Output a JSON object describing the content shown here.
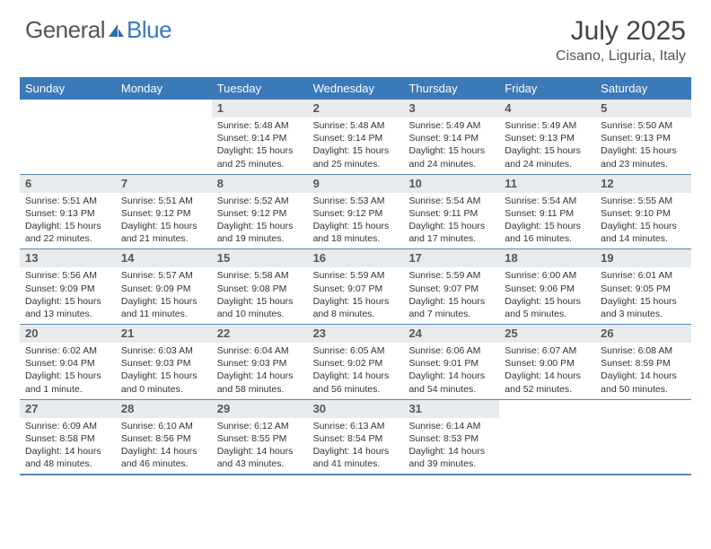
{
  "logo": {
    "general": "General",
    "blue": "Blue"
  },
  "title": {
    "month": "July 2025",
    "location": "Cisano, Liguria, Italy"
  },
  "columns": [
    "Sunday",
    "Monday",
    "Tuesday",
    "Wednesday",
    "Thursday",
    "Friday",
    "Saturday"
  ],
  "colors": {
    "header_bg": "#3a7ab8",
    "header_text": "#ffffff",
    "daynum_bg": "#e8ebed",
    "row_border": "#5a8ab0",
    "logo_gray": "#555555",
    "logo_blue": "#3a7ab8",
    "body_text": "#333333"
  },
  "weeks": [
    [
      {
        "day": "",
        "sunrise": "",
        "sunset": "",
        "daylight": ""
      },
      {
        "day": "",
        "sunrise": "",
        "sunset": "",
        "daylight": ""
      },
      {
        "day": "1",
        "sunrise": "Sunrise: 5:48 AM",
        "sunset": "Sunset: 9:14 PM",
        "daylight": "Daylight: 15 hours and 25 minutes."
      },
      {
        "day": "2",
        "sunrise": "Sunrise: 5:48 AM",
        "sunset": "Sunset: 9:14 PM",
        "daylight": "Daylight: 15 hours and 25 minutes."
      },
      {
        "day": "3",
        "sunrise": "Sunrise: 5:49 AM",
        "sunset": "Sunset: 9:14 PM",
        "daylight": "Daylight: 15 hours and 24 minutes."
      },
      {
        "day": "4",
        "sunrise": "Sunrise: 5:49 AM",
        "sunset": "Sunset: 9:13 PM",
        "daylight": "Daylight: 15 hours and 24 minutes."
      },
      {
        "day": "5",
        "sunrise": "Sunrise: 5:50 AM",
        "sunset": "Sunset: 9:13 PM",
        "daylight": "Daylight: 15 hours and 23 minutes."
      }
    ],
    [
      {
        "day": "6",
        "sunrise": "Sunrise: 5:51 AM",
        "sunset": "Sunset: 9:13 PM",
        "daylight": "Daylight: 15 hours and 22 minutes."
      },
      {
        "day": "7",
        "sunrise": "Sunrise: 5:51 AM",
        "sunset": "Sunset: 9:12 PM",
        "daylight": "Daylight: 15 hours and 21 minutes."
      },
      {
        "day": "8",
        "sunrise": "Sunrise: 5:52 AM",
        "sunset": "Sunset: 9:12 PM",
        "daylight": "Daylight: 15 hours and 19 minutes."
      },
      {
        "day": "9",
        "sunrise": "Sunrise: 5:53 AM",
        "sunset": "Sunset: 9:12 PM",
        "daylight": "Daylight: 15 hours and 18 minutes."
      },
      {
        "day": "10",
        "sunrise": "Sunrise: 5:54 AM",
        "sunset": "Sunset: 9:11 PM",
        "daylight": "Daylight: 15 hours and 17 minutes."
      },
      {
        "day": "11",
        "sunrise": "Sunrise: 5:54 AM",
        "sunset": "Sunset: 9:11 PM",
        "daylight": "Daylight: 15 hours and 16 minutes."
      },
      {
        "day": "12",
        "sunrise": "Sunrise: 5:55 AM",
        "sunset": "Sunset: 9:10 PM",
        "daylight": "Daylight: 15 hours and 14 minutes."
      }
    ],
    [
      {
        "day": "13",
        "sunrise": "Sunrise: 5:56 AM",
        "sunset": "Sunset: 9:09 PM",
        "daylight": "Daylight: 15 hours and 13 minutes."
      },
      {
        "day": "14",
        "sunrise": "Sunrise: 5:57 AM",
        "sunset": "Sunset: 9:09 PM",
        "daylight": "Daylight: 15 hours and 11 minutes."
      },
      {
        "day": "15",
        "sunrise": "Sunrise: 5:58 AM",
        "sunset": "Sunset: 9:08 PM",
        "daylight": "Daylight: 15 hours and 10 minutes."
      },
      {
        "day": "16",
        "sunrise": "Sunrise: 5:59 AM",
        "sunset": "Sunset: 9:07 PM",
        "daylight": "Daylight: 15 hours and 8 minutes."
      },
      {
        "day": "17",
        "sunrise": "Sunrise: 5:59 AM",
        "sunset": "Sunset: 9:07 PM",
        "daylight": "Daylight: 15 hours and 7 minutes."
      },
      {
        "day": "18",
        "sunrise": "Sunrise: 6:00 AM",
        "sunset": "Sunset: 9:06 PM",
        "daylight": "Daylight: 15 hours and 5 minutes."
      },
      {
        "day": "19",
        "sunrise": "Sunrise: 6:01 AM",
        "sunset": "Sunset: 9:05 PM",
        "daylight": "Daylight: 15 hours and 3 minutes."
      }
    ],
    [
      {
        "day": "20",
        "sunrise": "Sunrise: 6:02 AM",
        "sunset": "Sunset: 9:04 PM",
        "daylight": "Daylight: 15 hours and 1 minute."
      },
      {
        "day": "21",
        "sunrise": "Sunrise: 6:03 AM",
        "sunset": "Sunset: 9:03 PM",
        "daylight": "Daylight: 15 hours and 0 minutes."
      },
      {
        "day": "22",
        "sunrise": "Sunrise: 6:04 AM",
        "sunset": "Sunset: 9:03 PM",
        "daylight": "Daylight: 14 hours and 58 minutes."
      },
      {
        "day": "23",
        "sunrise": "Sunrise: 6:05 AM",
        "sunset": "Sunset: 9:02 PM",
        "daylight": "Daylight: 14 hours and 56 minutes."
      },
      {
        "day": "24",
        "sunrise": "Sunrise: 6:06 AM",
        "sunset": "Sunset: 9:01 PM",
        "daylight": "Daylight: 14 hours and 54 minutes."
      },
      {
        "day": "25",
        "sunrise": "Sunrise: 6:07 AM",
        "sunset": "Sunset: 9:00 PM",
        "daylight": "Daylight: 14 hours and 52 minutes."
      },
      {
        "day": "26",
        "sunrise": "Sunrise: 6:08 AM",
        "sunset": "Sunset: 8:59 PM",
        "daylight": "Daylight: 14 hours and 50 minutes."
      }
    ],
    [
      {
        "day": "27",
        "sunrise": "Sunrise: 6:09 AM",
        "sunset": "Sunset: 8:58 PM",
        "daylight": "Daylight: 14 hours and 48 minutes."
      },
      {
        "day": "28",
        "sunrise": "Sunrise: 6:10 AM",
        "sunset": "Sunset: 8:56 PM",
        "daylight": "Daylight: 14 hours and 46 minutes."
      },
      {
        "day": "29",
        "sunrise": "Sunrise: 6:12 AM",
        "sunset": "Sunset: 8:55 PM",
        "daylight": "Daylight: 14 hours and 43 minutes."
      },
      {
        "day": "30",
        "sunrise": "Sunrise: 6:13 AM",
        "sunset": "Sunset: 8:54 PM",
        "daylight": "Daylight: 14 hours and 41 minutes."
      },
      {
        "day": "31",
        "sunrise": "Sunrise: 6:14 AM",
        "sunset": "Sunset: 8:53 PM",
        "daylight": "Daylight: 14 hours and 39 minutes."
      },
      {
        "day": "",
        "sunrise": "",
        "sunset": "",
        "daylight": ""
      },
      {
        "day": "",
        "sunrise": "",
        "sunset": "",
        "daylight": ""
      }
    ]
  ]
}
